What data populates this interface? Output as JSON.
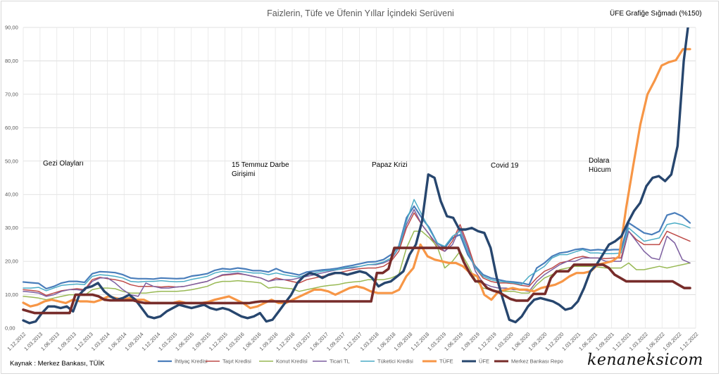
{
  "chart_data": {
    "type": "line",
    "title": "Faizlerin, Tüfe ve Üfenin Yıllar İçindeki Serüveni",
    "note": "ÜFE Grafiğe Sığmadı (%150)",
    "source": "Kaynak : Merkez Bankası, TÜİK",
    "watermark": "kenaneksicom",
    "ylim": [
      0,
      90
    ],
    "yticks": [
      "0,00",
      "10,00",
      "20,00",
      "30,00",
      "40,00",
      "50,00",
      "60,00",
      "70,00",
      "80,00",
      "90,00"
    ],
    "xticks": [
      "1.12.2012",
      "1.03.2013",
      "1.06.2013",
      "1.09.2013",
      "1.12.2013",
      "1.03.2014",
      "1.06.2014",
      "1.09.2014",
      "1.12.2014",
      "1.03.2015",
      "1.06.2015",
      "1.09.2015",
      "1.12.2015",
      "1.03.2016",
      "1.06.2016",
      "1.09.2016",
      "1.12.2016",
      "1.03.2017",
      "1.06.2017",
      "1.09.2017",
      "1.12.2017",
      "1.03.2018",
      "1.06.2018",
      "1.09.2018",
      "1.12.2018",
      "1.03.2019",
      "1.06.2019",
      "1.09.2019",
      "1.12.2019",
      "1.03.2020",
      "1.06.2020",
      "1.09.2020",
      "1.12.2020",
      "1.03.2021",
      "1.06.2021",
      "1.09.2021",
      "1.12.2021",
      "1.03.2022",
      "1.06.2022",
      "1.09.2022",
      "1.12.2022"
    ],
    "annotations": [
      {
        "text": "Gezi Olayları",
        "lines": [
          "Gezi Olayları"
        ]
      },
      {
        "text": "15 Temmuz Darbe Girişimi",
        "lines": [
          "15 Temmuz Darbe",
          "Girişimi"
        ]
      },
      {
        "text": "Papaz Krizi",
        "lines": [
          "Papaz Krizi"
        ]
      },
      {
        "text": "Covid 19",
        "lines": [
          "Covid 19"
        ]
      },
      {
        "text": "Dolara Hücum",
        "lines": [
          "Dolara",
          "Hücum"
        ]
      }
    ],
    "series": [
      {
        "name": "İhtiyaç Kredisi",
        "color": "#4a7ebb",
        "width": 2.2,
        "values": [
          13.8,
          13.6,
          13.4,
          11.8,
          12.5,
          13.5,
          14.0,
          14.0,
          13.7,
          16.3,
          16.9,
          16.8,
          16.6,
          16.0,
          15.0,
          14.8,
          14.8,
          14.7,
          15.0,
          14.9,
          14.8,
          14.9,
          15.6,
          15.9,
          16.3,
          17.3,
          17.8,
          17.6,
          18.0,
          17.7,
          17.2,
          17.2,
          16.8,
          17.8,
          16.8,
          16.4,
          15.9,
          16.8,
          17.1,
          17.4,
          17.6,
          17.9,
          18.4,
          18.8,
          19.3,
          19.8,
          19.9,
          20.5,
          22.0,
          24.5,
          33.0,
          36.5,
          33.0,
          30.0,
          25.5,
          24.0,
          27.0,
          28.0,
          22.0,
          18.5,
          16.0,
          15.0,
          14.5,
          14.0,
          13.8,
          13.5,
          13.0,
          18.0,
          19.5,
          21.5,
          22.5,
          22.8,
          23.5,
          23.8,
          23.3,
          23.5,
          23.3,
          23.5,
          23.5,
          31.5,
          30.0,
          28.5,
          28.0,
          29.0,
          33.8,
          34.5,
          33.5,
          31.5
        ]
      },
      {
        "name": "Taşıt Kredisi",
        "color": "#be4b48",
        "width": 1.5,
        "values": [
          11.5,
          11.3,
          11.0,
          9.8,
          10.5,
          11.2,
          11.5,
          11.8,
          11.5,
          14.5,
          15.2,
          14.8,
          14.5,
          14.0,
          13.0,
          12.5,
          12.5,
          12.5,
          12.3,
          12.5,
          12.3,
          12.5,
          13.0,
          13.5,
          14.0,
          15.0,
          15.8,
          16.0,
          16.3,
          16.0,
          15.5,
          15.0,
          14.0,
          15.0,
          14.5,
          14.0,
          13.5,
          14.5,
          15.0,
          15.5,
          15.8,
          16.5,
          17.0,
          17.5,
          17.8,
          18.0,
          18.0,
          18.5,
          20.0,
          23.0,
          30.0,
          34.5,
          31.0,
          28.0,
          24.0,
          23.0,
          26.0,
          31.0,
          25.0,
          18.0,
          15.0,
          14.0,
          13.5,
          13.5,
          13.3,
          12.8,
          12.5,
          15.0,
          17.0,
          18.0,
          19.5,
          20.0,
          21.0,
          21.5,
          21.0,
          21.0,
          20.8,
          21.0,
          21.0,
          29.0,
          26.5,
          25.0,
          25.0,
          25.0,
          29.0,
          28.0,
          27.0,
          26.0
        ]
      },
      {
        "name": "Konut Kredisi",
        "color": "#98b954",
        "width": 1.5,
        "values": [
          9.5,
          9.3,
          9.0,
          8.5,
          9.0,
          9.5,
          10.0,
          10.0,
          9.8,
          11.5,
          12.0,
          12.0,
          11.8,
          11.0,
          10.5,
          10.5,
          10.5,
          10.8,
          11.0,
          11.0,
          11.0,
          11.2,
          11.5,
          12.0,
          12.5,
          13.5,
          14.0,
          14.0,
          14.2,
          14.0,
          13.8,
          13.5,
          12.0,
          12.3,
          12.0,
          11.8,
          11.0,
          11.5,
          12.0,
          12.5,
          12.8,
          13.0,
          13.5,
          13.8,
          14.0,
          14.5,
          14.5,
          14.5,
          15.0,
          16.0,
          24.0,
          29.0,
          29.0,
          27.0,
          24.5,
          18.0,
          20.0,
          23.0,
          19.0,
          14.5,
          12.0,
          11.5,
          11.0,
          11.0,
          11.0,
          10.5,
          10.5,
          13.0,
          15.0,
          16.0,
          17.5,
          18.0,
          18.5,
          18.5,
          18.5,
          18.3,
          18.0,
          18.0,
          18.0,
          19.5,
          17.5,
          17.5,
          18.0,
          18.5,
          18.0,
          18.5,
          19.0,
          19.5
        ]
      },
      {
        "name": "Ticari TL",
        "color": "#7d5fa0",
        "width": 1.5,
        "values": [
          11.0,
          10.8,
          10.5,
          9.5,
          10.0,
          11.0,
          11.5,
          11.5,
          11.2,
          14.0,
          15.0,
          15.0,
          13.5,
          11.5,
          10.0,
          9.5,
          13.5,
          12.5,
          12.0,
          12.0,
          12.3,
          12.5,
          13.0,
          13.5,
          14.0,
          15.0,
          16.0,
          16.2,
          16.5,
          16.0,
          15.5,
          15.0,
          14.0,
          14.5,
          14.5,
          14.5,
          15.0,
          15.5,
          16.0,
          16.5,
          17.0,
          17.5,
          17.8,
          18.0,
          18.5,
          19.0,
          19.0,
          19.5,
          20.5,
          24.0,
          31.0,
          35.5,
          31.0,
          28.0,
          25.0,
          23.0,
          25.0,
          30.0,
          24.0,
          17.0,
          13.5,
          12.5,
          12.0,
          12.0,
          11.5,
          11.5,
          11.0,
          14.0,
          16.0,
          17.5,
          19.0,
          20.0,
          20.0,
          21.0,
          21.0,
          21.0,
          20.0,
          20.0,
          20.0,
          29.0,
          26.0,
          23.0,
          21.0,
          20.5,
          27.5,
          25.5,
          20.5,
          19.5
        ]
      },
      {
        "name": "Tüketici Kredisi",
        "color": "#4bacc6",
        "width": 1.5,
        "values": [
          12.0,
          12.0,
          12.2,
          11.2,
          12.0,
          12.8,
          13.0,
          13.2,
          13.0,
          15.5,
          16.0,
          15.8,
          15.5,
          15.0,
          14.0,
          13.8,
          14.0,
          14.0,
          14.2,
          14.0,
          13.9,
          14.0,
          14.6,
          15.0,
          15.5,
          16.5,
          17.0,
          16.8,
          17.0,
          16.8,
          16.5,
          16.5,
          16.0,
          16.5,
          16.0,
          15.6,
          15.3,
          16.0,
          16.5,
          17.0,
          17.3,
          17.5,
          18.0,
          18.3,
          18.5,
          19.0,
          19.2,
          19.8,
          21.0,
          24.0,
          32.0,
          38.5,
          34.0,
          29.5,
          25.5,
          24.5,
          27.5,
          29.0,
          23.0,
          18.0,
          15.5,
          14.5,
          14.0,
          13.8,
          13.5,
          13.0,
          15.5,
          17.0,
          18.5,
          21.0,
          22.0,
          22.0,
          22.8,
          23.5,
          22.5,
          22.5,
          22.3,
          22.3,
          22.5,
          30.0,
          28.0,
          26.0,
          26.5,
          27.0,
          31.0,
          31.5,
          31.0,
          30.0
        ]
      },
      {
        "name": "TÜFE",
        "color": "#f79646",
        "width": 3.2,
        "values": [
          7.6,
          6.5,
          7.0,
          8.0,
          8.5,
          8.0,
          7.5,
          8.5,
          8.0,
          8.0,
          7.8,
          8.5,
          9.5,
          9.0,
          8.5,
          9.0,
          8.5,
          8.5,
          7.5,
          7.5,
          7.5,
          7.5,
          8.0,
          7.5,
          7.5,
          7.5,
          7.8,
          8.5,
          9.0,
          9.5,
          8.5,
          7.5,
          6.0,
          6.5,
          7.5,
          8.5,
          7.5,
          7.5,
          8.5,
          9.5,
          10.5,
          11.5,
          11.5,
          11.0,
          10.0,
          11.0,
          12.0,
          12.5,
          12.0,
          11.0,
          10.5,
          10.5,
          10.5,
          11.5,
          15.5,
          18.0,
          25.0,
          21.5,
          20.5,
          20.0,
          19.5,
          19.5,
          18.5,
          16.5,
          15.5,
          10.0,
          8.5,
          11.0,
          11.5,
          12.0,
          11.5,
          11.5,
          11.0,
          12.0,
          12.5,
          13.0,
          14.0,
          15.5,
          16.5,
          16.5,
          17.0,
          19.0,
          19.5,
          20.0,
          21.5,
          36.0,
          48.7,
          61.0,
          70.0,
          74.0,
          78.6,
          79.6,
          80.2,
          83.5,
          83.5
        ]
      },
      {
        "name": "ÜFE",
        "color": "#27466e",
        "width": 3.4,
        "values": [
          2.3,
          1.5,
          2.0,
          4.5,
          6.5,
          6.5,
          6.0,
          6.5,
          5.0,
          10.0,
          12.0,
          12.5,
          13.5,
          11.0,
          9.5,
          8.5,
          9.0,
          10.0,
          8.5,
          6.0,
          3.5,
          3.0,
          3.5,
          5.0,
          6.0,
          7.0,
          6.5,
          6.0,
          6.5,
          7.0,
          6.0,
          5.5,
          6.0,
          5.5,
          4.5,
          3.5,
          3.0,
          3.5,
          4.5,
          2.0,
          2.5,
          5.0,
          7.5,
          10.0,
          13.5,
          15.5,
          16.5,
          16.0,
          15.0,
          16.0,
          16.5,
          16.5,
          16.0,
          16.5,
          17.0,
          16.5,
          15.0,
          12.5,
          13.5,
          14.0,
          15.5,
          17.0,
          22.0,
          25.0,
          32.0,
          46.0,
          45.0,
          38.0,
          33.5,
          33.0,
          29.5,
          29.5,
          30.0,
          29.0,
          28.5,
          24.0,
          15.0,
          8.5,
          2.5,
          1.8,
          3.5,
          6.5,
          8.5,
          9.0,
          8.5,
          8.0,
          7.0,
          5.5,
          6.0,
          8.0,
          12.0,
          17.0,
          19.0,
          22.0,
          25.0,
          26.0,
          27.5,
          31.5,
          35.0,
          37.5,
          42.5,
          45.0,
          45.5,
          44.0,
          46.0,
          54.5,
          80.0,
          95.0
        ]
      },
      {
        "name": "Merkez Bankası Repo",
        "color": "#772c2a",
        "width": 3.6,
        "values": [
          5.5,
          5.0,
          4.5,
          4.5,
          4.5,
          4.5,
          4.5,
          4.5,
          4.5,
          10.0,
          10.0,
          10.0,
          10.0,
          9.5,
          8.5,
          8.3,
          8.3,
          8.3,
          8.3,
          8.3,
          7.8,
          7.5,
          7.5,
          7.5,
          7.5,
          7.5,
          7.5,
          7.5,
          7.5,
          7.5,
          7.5,
          7.5,
          7.5,
          7.5,
          7.5,
          7.5,
          7.5,
          7.5,
          7.5,
          7.5,
          7.8,
          8.0,
          8.0,
          8.0,
          8.0,
          8.0,
          8.0,
          8.0,
          8.0,
          8.0,
          8.0,
          8.0,
          8.0,
          8.0,
          8.0,
          8.0,
          8.0,
          8.0,
          8.0,
          8.0,
          8.0,
          16.5,
          16.5,
          17.75,
          24.0,
          24.0,
          24.0,
          24.0,
          24.0,
          24.0,
          24.0,
          24.0,
          24.0,
          24.0,
          24.0,
          24.0,
          19.75,
          16.5,
          14.0,
          14.0,
          12.0,
          11.25,
          10.75,
          9.75,
          8.75,
          8.25,
          8.25,
          8.25,
          10.25,
          10.25,
          10.25,
          15.0,
          17.0,
          17.0,
          17.0,
          19.0,
          19.0,
          19.0,
          19.0,
          19.0,
          19.0,
          18.0,
          16.0,
          15.0,
          14.0,
          14.0,
          14.0,
          14.0,
          14.0,
          14.0,
          14.0,
          14.0,
          14.0,
          13.0,
          12.0,
          12.0
        ]
      }
    ]
  }
}
